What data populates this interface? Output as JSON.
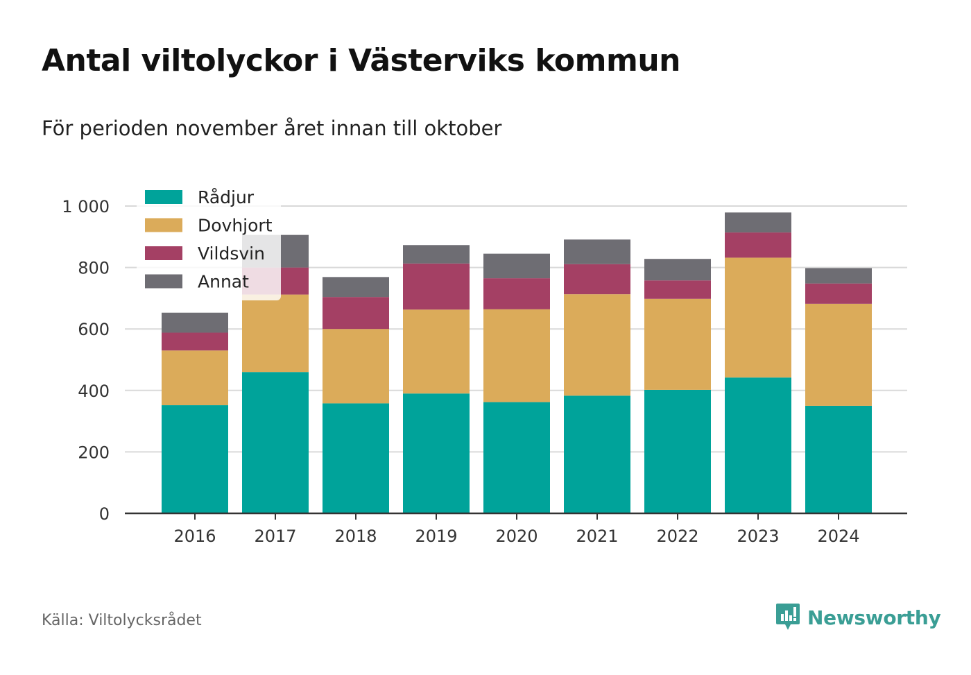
{
  "title": "Antal viltolyckor i Västerviks kommun",
  "subtitle": "För perioden november året innan till oktober",
  "source": "Källa: Viltolycksrådet",
  "brand": {
    "name": "Newsworthy",
    "icon": "newsworthy-logo-icon",
    "color": "#3a9e95"
  },
  "chart_data": {
    "type": "bar",
    "stacked": true,
    "categories": [
      "2016",
      "2017",
      "2018",
      "2019",
      "2020",
      "2021",
      "2022",
      "2023",
      "2024"
    ],
    "series": [
      {
        "name": "Rådjur",
        "color": "#00a39a",
        "values": [
          352,
          460,
          358,
          390,
          362,
          383,
          402,
          442,
          350
        ]
      },
      {
        "name": "Dovhjort",
        "color": "#dbab5a",
        "values": [
          178,
          252,
          242,
          273,
          302,
          330,
          296,
          390,
          332
        ]
      },
      {
        "name": "Vildsvin",
        "color": "#a44064",
        "values": [
          58,
          88,
          104,
          150,
          101,
          98,
          60,
          82,
          66
        ]
      },
      {
        "name": "Annat",
        "color": "#6e6d73",
        "values": [
          65,
          106,
          65,
          60,
          80,
          80,
          70,
          65,
          50
        ]
      }
    ],
    "yticks": [
      0,
      200,
      400,
      600,
      800,
      1000
    ],
    "ytick_labels": [
      "0",
      "200",
      "400",
      "600",
      "800",
      "1 000"
    ],
    "ylim": [
      0,
      1000
    ],
    "grid": true,
    "legend": "top-left"
  }
}
